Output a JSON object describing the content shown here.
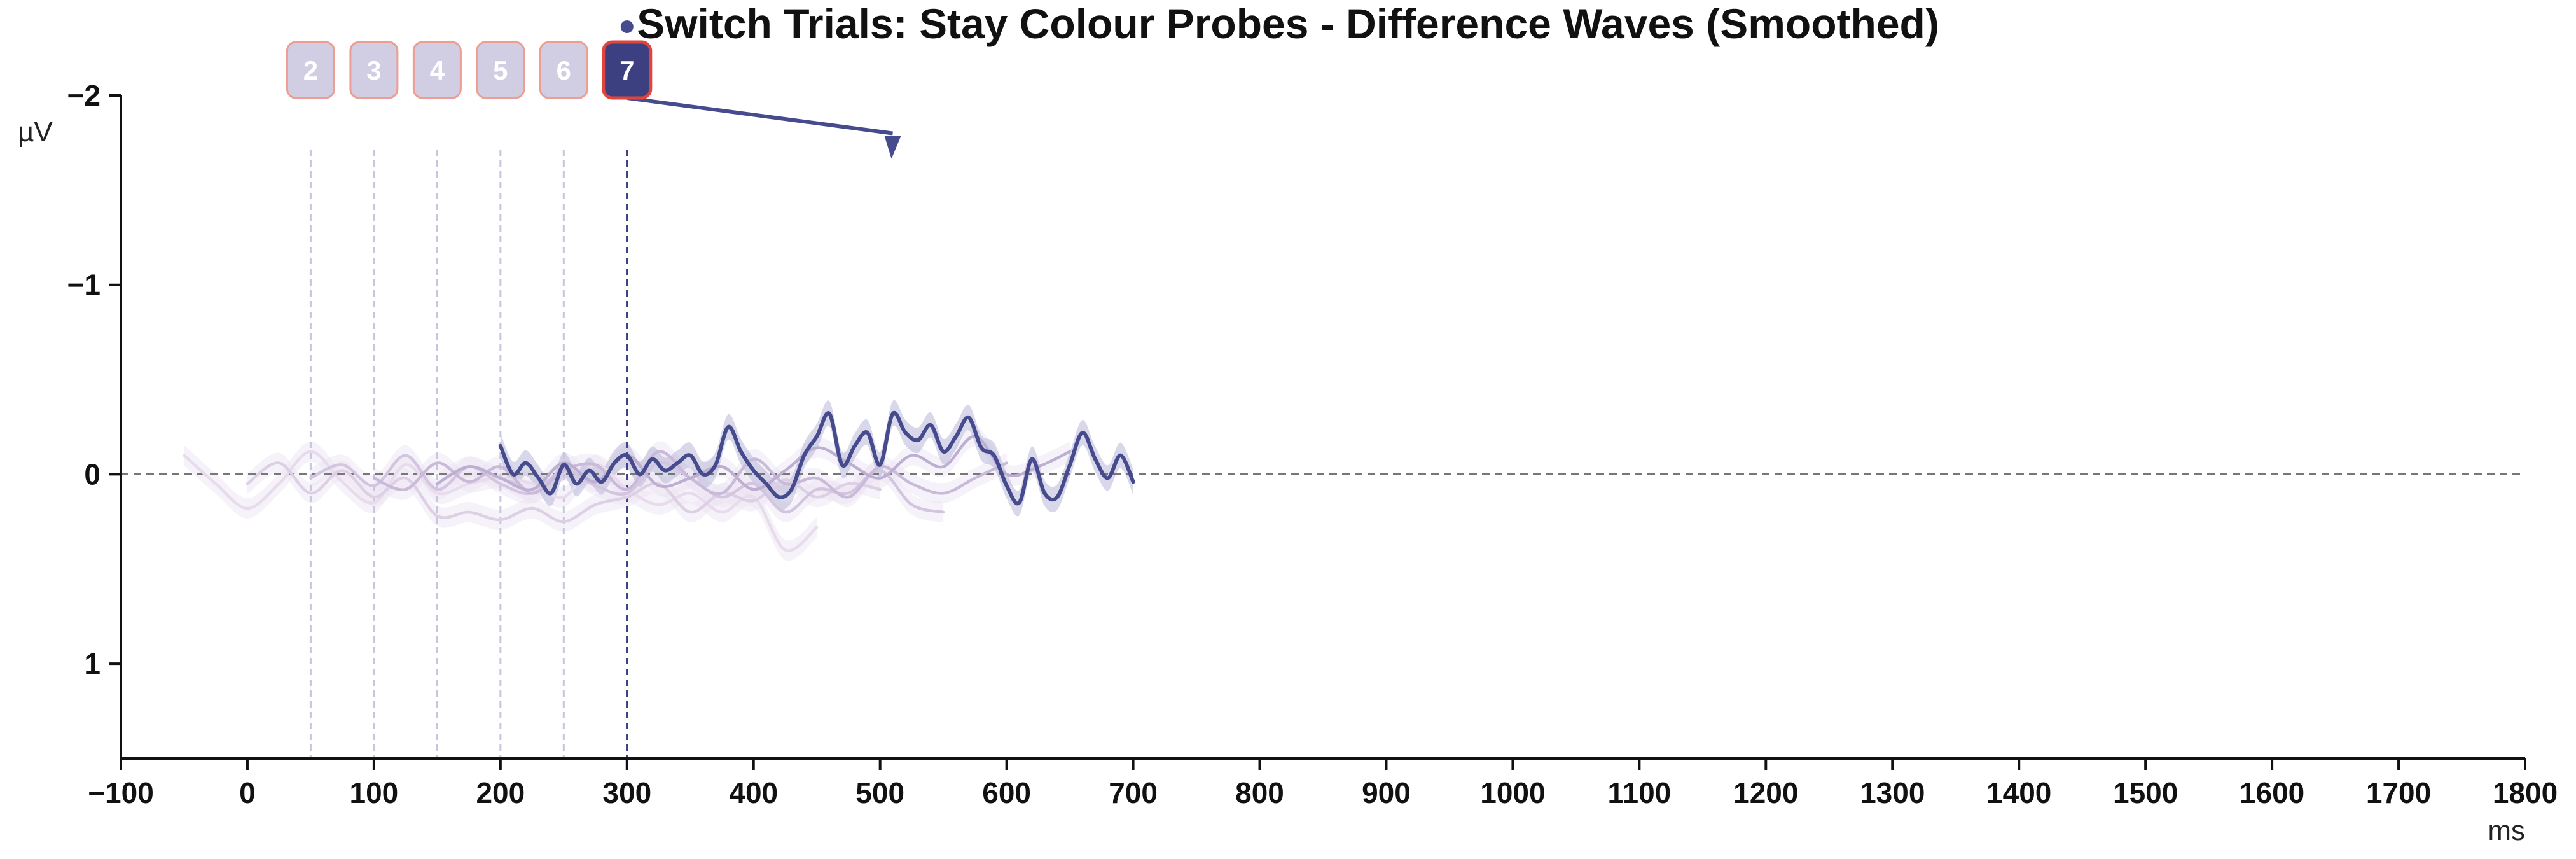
{
  "chart_data": {
    "type": "line",
    "title": "Switch Trials: Stay Colour Probes - Difference Waves (Smoothed)",
    "xlabel": "ms",
    "ylabel": "µV",
    "xlim": [
      -100,
      1800
    ],
    "ylim": [
      1.5,
      -2
    ],
    "y_inverted": true,
    "xticks": [
      -100,
      0,
      100,
      200,
      300,
      400,
      500,
      600,
      700,
      800,
      900,
      1000,
      1100,
      1200,
      1300,
      1400,
      1500,
      1600,
      1700,
      1800
    ],
    "xtick_labels": [
      "−100",
      "0",
      "100",
      "200",
      "300",
      "400",
      "500",
      "600",
      "700",
      "800",
      "900",
      "1000",
      "1100",
      "1200",
      "1300",
      "1400",
      "1500",
      "1600",
      "1700",
      "1800"
    ],
    "yticks": [
      -2,
      -1,
      0,
      1
    ],
    "ytick_labels": [
      "−2",
      "−1",
      "0",
      "1"
    ],
    "zero_line": 0,
    "active_series": "7",
    "markers": [
      {
        "label": "2",
        "x": 50
      },
      {
        "label": "3",
        "x": 100
      },
      {
        "label": "4",
        "x": 150
      },
      {
        "label": "5",
        "x": 200
      },
      {
        "label": "6",
        "x": 250
      },
      {
        "label": "7",
        "x": 300
      }
    ],
    "annotation": {
      "from_x": 300,
      "from_y": -2,
      "to_x": 510,
      "to_y": -1.8
    },
    "series": [
      {
        "name": "2",
        "x_start": -50,
        "x_end": 450,
        "x": [
          -50,
          -25,
          0,
          25,
          50,
          75,
          100,
          125,
          150,
          175,
          200,
          225,
          250,
          275,
          300,
          325,
          350,
          375,
          400,
          425,
          450
        ],
        "values": [
          -0.1,
          0.05,
          0.18,
          0.05,
          -0.12,
          0.04,
          0.15,
          -0.05,
          0.1,
          0.05,
          0.02,
          0.05,
          0.12,
          -0.05,
          0.08,
          0.16,
          0.1,
          0.2,
          0.12,
          0.4,
          0.28
        ]
      },
      {
        "name": "3",
        "x_start": 0,
        "x_end": 500,
        "x": [
          0,
          25,
          50,
          75,
          100,
          125,
          150,
          175,
          200,
          225,
          250,
          275,
          300,
          325,
          350,
          375,
          400,
          425,
          450,
          475,
          500
        ],
        "values": [
          0.05,
          -0.06,
          0.1,
          -0.02,
          0.12,
          0.02,
          0.22,
          0.2,
          0.24,
          0.18,
          0.25,
          0.16,
          0.12,
          0.05,
          0.2,
          0.1,
          0.14,
          0.03,
          0.12,
          0.05,
          0.08
        ]
      },
      {
        "name": "4",
        "x_start": 50,
        "x_end": 550,
        "x": [
          50,
          75,
          100,
          125,
          150,
          175,
          200,
          225,
          250,
          275,
          300,
          325,
          350,
          375,
          400,
          425,
          450,
          475,
          500,
          525,
          550
        ],
        "values": [
          0.02,
          -0.05,
          0.06,
          -0.1,
          0.08,
          -0.04,
          0.05,
          0.1,
          -0.02,
          0.06,
          0.1,
          -0.06,
          0.02,
          0.12,
          0.05,
          0.2,
          0.08,
          0.1,
          -0.02,
          0.16,
          0.2
        ]
      },
      {
        "name": "5",
        "x_start": 100,
        "x_end": 600,
        "x": [
          100,
          125,
          150,
          175,
          200,
          225,
          250,
          275,
          300,
          325,
          350,
          375,
          400,
          425,
          450,
          475,
          500,
          525,
          550,
          575,
          600
        ],
        "values": [
          0.02,
          0.08,
          -0.06,
          0.04,
          -0.04,
          0.1,
          -0.02,
          -0.05,
          0.08,
          -0.12,
          0.02,
          0.1,
          -0.08,
          0.05,
          0.02,
          0.12,
          -0.04,
          0.05,
          0.1,
          0.02,
          -0.06
        ]
      },
      {
        "name": "6",
        "x_start": 150,
        "x_end": 650,
        "x": [
          150,
          175,
          200,
          225,
          250,
          275,
          300,
          325,
          350,
          375,
          400,
          425,
          450,
          475,
          500,
          525,
          550,
          575,
          600,
          625,
          650
        ],
        "values": [
          0.05,
          -0.04,
          0.02,
          0.08,
          -0.06,
          0.04,
          -0.1,
          0.06,
          0.02,
          -0.04,
          0.08,
          -0.02,
          -0.14,
          -0.06,
          0.02,
          -0.1,
          -0.04,
          -0.2,
          0.0,
          -0.04,
          -0.12
        ]
      },
      {
        "name": "7",
        "x_start": 200,
        "x_end": 700,
        "x": [
          200,
          210,
          220,
          230,
          240,
          250,
          260,
          270,
          280,
          290,
          300,
          310,
          320,
          330,
          340,
          350,
          360,
          370,
          380,
          390,
          400,
          410,
          420,
          430,
          440,
          450,
          460,
          470,
          480,
          490,
          500,
          510,
          520,
          530,
          540,
          550,
          560,
          570,
          580,
          590,
          600,
          610,
          620,
          630,
          640,
          650,
          660,
          670,
          680,
          690,
          700
        ],
        "values": [
          -0.15,
          0.0,
          -0.06,
          0.02,
          0.1,
          -0.05,
          0.05,
          -0.02,
          0.04,
          -0.06,
          -0.1,
          0.0,
          -0.08,
          -0.02,
          -0.06,
          -0.1,
          0.0,
          -0.05,
          -0.25,
          -0.12,
          -0.02,
          0.05,
          0.12,
          0.08,
          -0.1,
          -0.2,
          -0.32,
          -0.05,
          -0.15,
          -0.22,
          -0.05,
          -0.32,
          -0.22,
          -0.18,
          -0.26,
          -0.12,
          -0.2,
          -0.3,
          -0.14,
          -0.1,
          0.06,
          0.15,
          -0.08,
          0.1,
          0.12,
          -0.05,
          -0.22,
          -0.08,
          0.02,
          -0.1,
          0.04
        ]
      }
    ]
  }
}
